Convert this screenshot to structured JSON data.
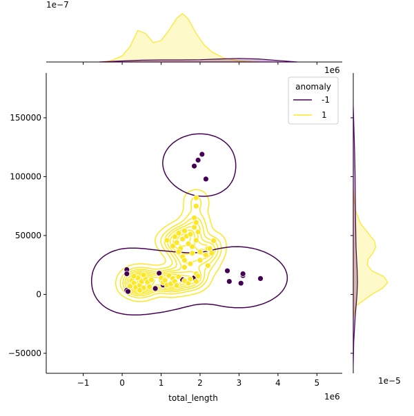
{
  "chart_data": {
    "type": "scatter",
    "subtype": "jointplot-kde",
    "title": "",
    "xlabel": "total_length",
    "ylabel": "",
    "x_offset_label": "1e6",
    "y_offset_label": "",
    "top_marginal_offset_label": "1e−7",
    "right_marginal_offset_label": "1e−5",
    "right_marginal_x_offset_label": "1e6",
    "xlim": [
      -1.95,
      5.65
    ],
    "ylim": [
      -67000,
      188000
    ],
    "x_ticks": [
      -1,
      0,
      1,
      2,
      3,
      4,
      5
    ],
    "x_tick_labels": [
      "−1",
      "0",
      "1",
      "2",
      "3",
      "4",
      "5"
    ],
    "y_ticks": [
      -50000,
      0,
      50000,
      100000,
      150000
    ],
    "y_tick_labels": [
      "−50000",
      "0",
      "50000",
      "100000",
      "150000"
    ],
    "grid": false,
    "legend": {
      "title": "anomaly",
      "placement": "top-right",
      "entries": [
        {
          "label": "-1",
          "color": "#440154"
        },
        {
          "label": "1",
          "color": "#fde725"
        }
      ]
    },
    "series": [
      {
        "name": "-1",
        "color": "#440154",
        "points": [
          [
            0.12,
            21000
          ],
          [
            0.12,
            17500
          ],
          [
            0.12,
            3500
          ],
          [
            0.15,
            2500
          ],
          [
            0.85,
            5000
          ],
          [
            0.95,
            18000
          ],
          [
            1.05,
            8000
          ],
          [
            1.95,
            114000
          ],
          [
            2.05,
            119000
          ],
          [
            1.85,
            109000
          ],
          [
            2.15,
            98000
          ],
          [
            2.7,
            20000
          ],
          [
            2.75,
            11000
          ],
          [
            3.05,
            9500
          ],
          [
            3.1,
            16000
          ],
          [
            3.1,
            17500
          ],
          [
            3.55,
            13500
          ],
          [
            1.85,
            14000
          ],
          [
            1.55,
            12500
          ]
        ]
      },
      {
        "name": "1",
        "color": "#fde725",
        "points": [
          [
            0.25,
            12000
          ],
          [
            0.3,
            9500
          ],
          [
            0.35,
            6000
          ],
          [
            0.4,
            14000
          ],
          [
            0.45,
            8000
          ],
          [
            0.5,
            11000
          ],
          [
            0.55,
            5500
          ],
          [
            0.6,
            13000
          ],
          [
            0.65,
            10500
          ],
          [
            0.2,
            7000
          ],
          [
            0.7,
            6500
          ],
          [
            0.75,
            12500
          ],
          [
            0.3,
            15500
          ],
          [
            0.55,
            16500
          ],
          [
            0.45,
            3500
          ],
          [
            1.0,
            14000
          ],
          [
            1.05,
            10000
          ],
          [
            1.1,
            12000
          ],
          [
            1.15,
            8000
          ],
          [
            1.2,
            16000
          ],
          [
            1.25,
            9000
          ],
          [
            1.3,
            13500
          ],
          [
            1.35,
            11000
          ],
          [
            1.4,
            7500
          ],
          [
            1.45,
            15000
          ],
          [
            1.6,
            11500
          ],
          [
            1.7,
            9500
          ],
          [
            1.75,
            13000
          ],
          [
            1.9,
            17500
          ],
          [
            1.9,
            11000
          ],
          [
            1.95,
            15500
          ],
          [
            1.35,
            49000
          ],
          [
            1.4,
            44000
          ],
          [
            1.45,
            52000
          ],
          [
            1.5,
            39000
          ],
          [
            1.55,
            47000
          ],
          [
            1.6,
            54000
          ],
          [
            1.65,
            49500
          ],
          [
            1.7,
            43000
          ],
          [
            1.75,
            51000
          ],
          [
            1.8,
            40500
          ],
          [
            1.85,
            57000
          ],
          [
            1.9,
            46000
          ],
          [
            1.95,
            53000
          ],
          [
            2.0,
            36000
          ],
          [
            1.55,
            32000
          ],
          [
            1.6,
            29000
          ],
          [
            1.75,
            26000
          ],
          [
            1.8,
            35000
          ],
          [
            1.6,
            23000
          ],
          [
            1.85,
            65000
          ],
          [
            1.9,
            61000
          ],
          [
            2.2,
            39000
          ],
          [
            2.25,
            39000
          ],
          [
            2.35,
            45500
          ],
          [
            2.15,
            33500
          ],
          [
            2.2,
            24500
          ],
          [
            2.3,
            35000
          ],
          [
            1.9,
            75000
          ],
          [
            1.9,
            82000
          ],
          [
            1.15,
            46000
          ],
          [
            1.3,
            41000
          ],
          [
            1.45,
            36000
          ],
          [
            2.0,
            29000
          ]
        ]
      }
    ],
    "top_marginal": {
      "series": [
        {
          "name": "1",
          "x": [
            -0.6,
            -0.3,
            0.0,
            0.2,
            0.4,
            0.6,
            0.8,
            1.0,
            1.2,
            1.4,
            1.55,
            1.7,
            1.9,
            2.1,
            2.3,
            2.6,
            3.0,
            3.5
          ],
          "density": [
            0.0,
            0.02,
            0.12,
            0.3,
            0.62,
            0.56,
            0.38,
            0.42,
            0.62,
            0.86,
            0.95,
            0.84,
            0.56,
            0.34,
            0.2,
            0.08,
            0.02,
            0.0
          ]
        },
        {
          "name": "-1",
          "x": [
            -0.6,
            0.0,
            0.5,
            1.0,
            1.5,
            2.0,
            2.5,
            3.0,
            3.5,
            4.0,
            4.5
          ],
          "density": [
            0.0,
            0.02,
            0.035,
            0.04,
            0.04,
            0.045,
            0.06,
            0.07,
            0.06,
            0.03,
            0.0
          ]
        }
      ]
    },
    "right_marginal": {
      "series": [
        {
          "name": "1",
          "y": [
            -20000,
            -10000,
            0,
            5000,
            10000,
            15000,
            20000,
            25000,
            30000,
            35000,
            40000,
            45000,
            50000,
            55000,
            60000,
            70000,
            80000,
            90000
          ],
          "density": [
            0.0,
            0.05,
            0.4,
            0.62,
            0.74,
            0.66,
            0.4,
            0.3,
            0.32,
            0.42,
            0.48,
            0.46,
            0.36,
            0.26,
            0.16,
            0.06,
            0.02,
            0.0
          ]
        },
        {
          "name": "-1",
          "y": [
            -60000,
            -40000,
            -20000,
            0,
            10000,
            20000,
            40000,
            60000,
            80000,
            100000,
            120000,
            140000,
            160000
          ],
          "density": [
            0.0,
            0.01,
            0.04,
            0.08,
            0.09,
            0.085,
            0.06,
            0.05,
            0.045,
            0.04,
            0.03,
            0.015,
            0.0
          ]
        }
      ]
    }
  }
}
